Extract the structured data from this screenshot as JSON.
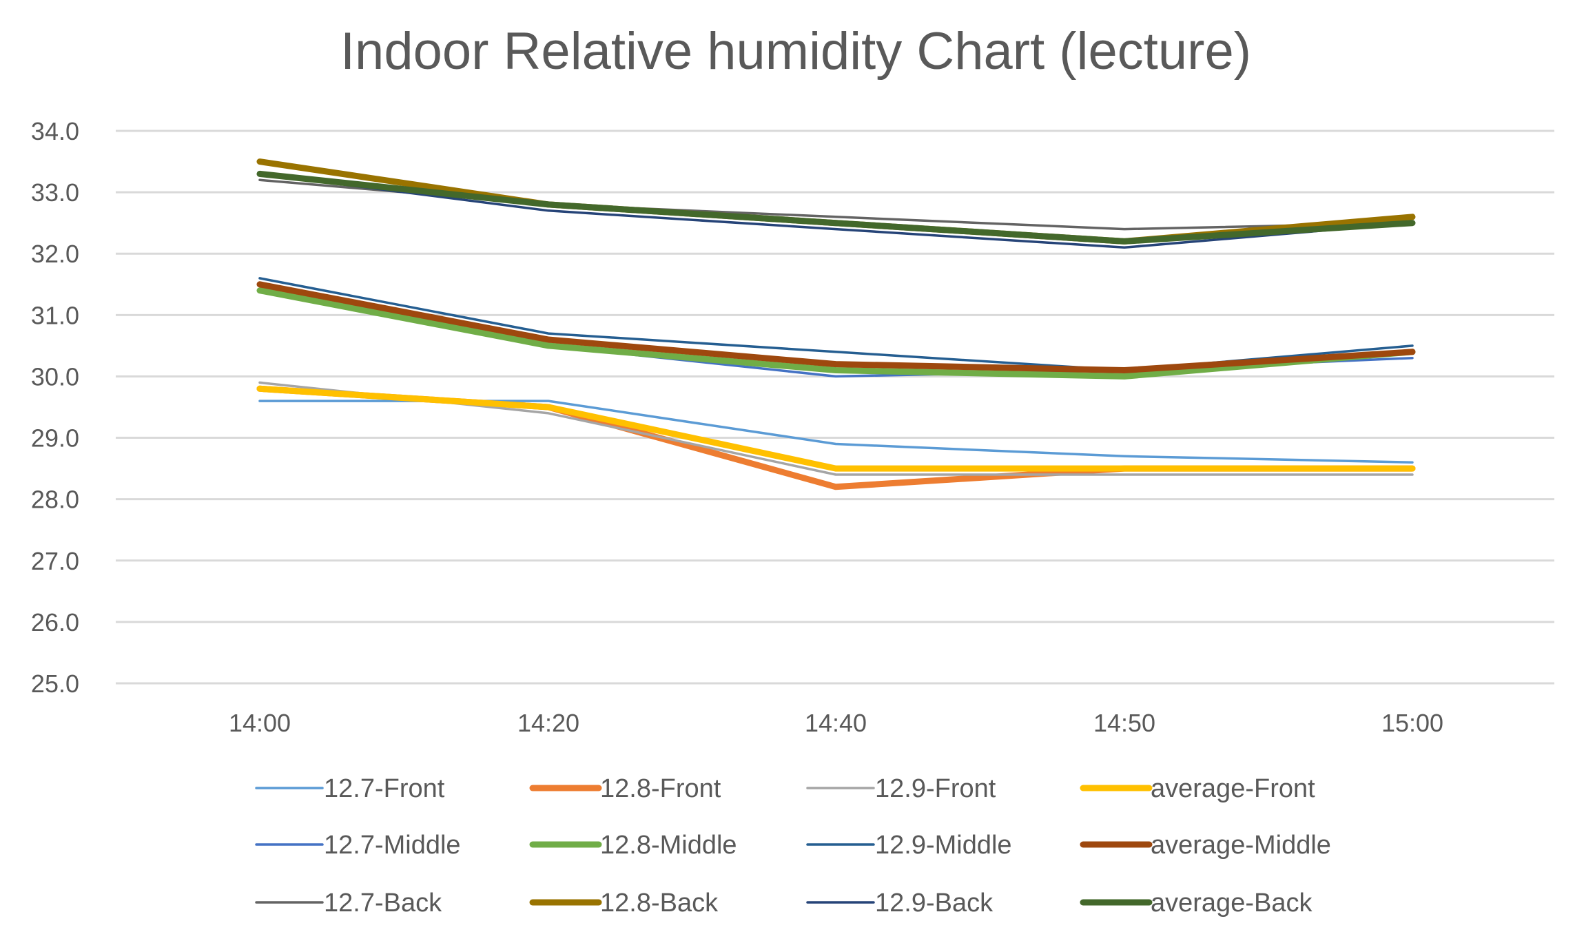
{
  "chart_data": {
    "type": "line",
    "title": "Indoor Relative humidity Chart (lecture)",
    "xlabel": "",
    "ylabel": "",
    "categories": [
      "14:00",
      "14:20",
      "14:40",
      "14:50",
      "15:00"
    ],
    "ylim": [
      25.0,
      34.0
    ],
    "yticks": [
      "25.0",
      "26.0",
      "27.0",
      "28.0",
      "29.0",
      "30.0",
      "31.0",
      "32.0",
      "33.0",
      "34.0"
    ],
    "grid": true,
    "legend_position": "bottom",
    "series": [
      {
        "name": "12.7-Front",
        "color": "#5B9BD5",
        "weight": "thin",
        "values": [
          29.6,
          29.6,
          28.9,
          28.7,
          28.6
        ]
      },
      {
        "name": "12.8-Front",
        "color": "#ED7D31",
        "weight": "thick",
        "values": [
          29.8,
          29.5,
          28.2,
          28.5,
          28.5
        ]
      },
      {
        "name": "12.9-Front",
        "color": "#A5A5A5",
        "weight": "thin",
        "values": [
          29.9,
          29.4,
          28.4,
          28.4,
          28.4
        ]
      },
      {
        "name": "average-Front",
        "color": "#FFC000",
        "weight": "thick",
        "values": [
          29.8,
          29.5,
          28.5,
          28.5,
          28.5
        ]
      },
      {
        "name": "12.7-Middle",
        "color": "#4472C4",
        "weight": "thin",
        "values": [
          31.5,
          30.5,
          30.0,
          30.1,
          30.3
        ]
      },
      {
        "name": "12.8-Middle",
        "color": "#70AD47",
        "weight": "thick",
        "values": [
          31.4,
          30.5,
          30.1,
          30.0,
          30.4
        ]
      },
      {
        "name": "12.9-Middle",
        "color": "#255E91",
        "weight": "thin",
        "values": [
          31.6,
          30.7,
          30.4,
          30.1,
          30.5
        ]
      },
      {
        "name": "average-Middle",
        "color": "#9E480E",
        "weight": "thick",
        "values": [
          31.5,
          30.6,
          30.2,
          30.1,
          30.4
        ]
      },
      {
        "name": "12.7-Back",
        "color": "#636363",
        "weight": "thin",
        "values": [
          33.2,
          32.8,
          32.6,
          32.4,
          32.5
        ]
      },
      {
        "name": "12.8-Back",
        "color": "#997300",
        "weight": "thick",
        "values": [
          33.5,
          32.8,
          32.5,
          32.2,
          32.6
        ]
      },
      {
        "name": "12.9-Back",
        "color": "#264478",
        "weight": "thin",
        "values": [
          33.3,
          32.7,
          32.4,
          32.1,
          32.5
        ]
      },
      {
        "name": "average-Back",
        "color": "#43682B",
        "weight": "thick",
        "values": [
          33.3,
          32.8,
          32.5,
          32.2,
          32.5
        ]
      }
    ]
  }
}
